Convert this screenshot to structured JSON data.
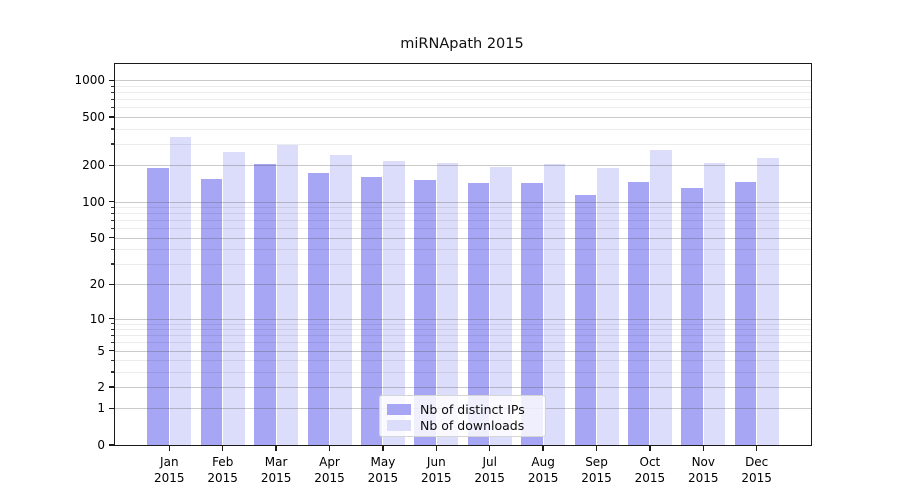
{
  "chart_data": {
    "type": "bar",
    "title": "miRNApath 2015",
    "categories": [
      "Jan",
      "Feb",
      "Mar",
      "Apr",
      "May",
      "Jun",
      "Jul",
      "Aug",
      "Sep",
      "Oct",
      "Nov",
      "Dec"
    ],
    "category_year": "2015",
    "series": [
      {
        "name": "Nb of distinct IPs",
        "color": "#a6a6f4",
        "values": [
          190,
          155,
          205,
          173,
          160,
          150,
          142,
          143,
          114,
          145,
          129,
          146
        ]
      },
      {
        "name": "Nb of downloads",
        "color": "#dcdcfb",
        "values": [
          340,
          257,
          293,
          242,
          216,
          210,
          193,
          203,
          190,
          267,
          210,
          228
        ]
      }
    ],
    "yscale": "log(1+y)",
    "ylim": [
      0,
      1350
    ],
    "yticks": [
      0,
      1,
      2,
      5,
      10,
      20,
      50,
      100,
      200,
      500,
      1000
    ],
    "ytick_labels": [
      "0",
      "1",
      "2",
      "5",
      "10",
      "20",
      "50",
      "100",
      "200",
      "500",
      "1000"
    ],
    "minor_gridlines": [
      3,
      4,
      6,
      7,
      8,
      9,
      30,
      40,
      60,
      70,
      80,
      90,
      300,
      400,
      600,
      700,
      800,
      900
    ],
    "grid": true,
    "legend_position": "lower center",
    "xlabel": "",
    "ylabel": ""
  }
}
